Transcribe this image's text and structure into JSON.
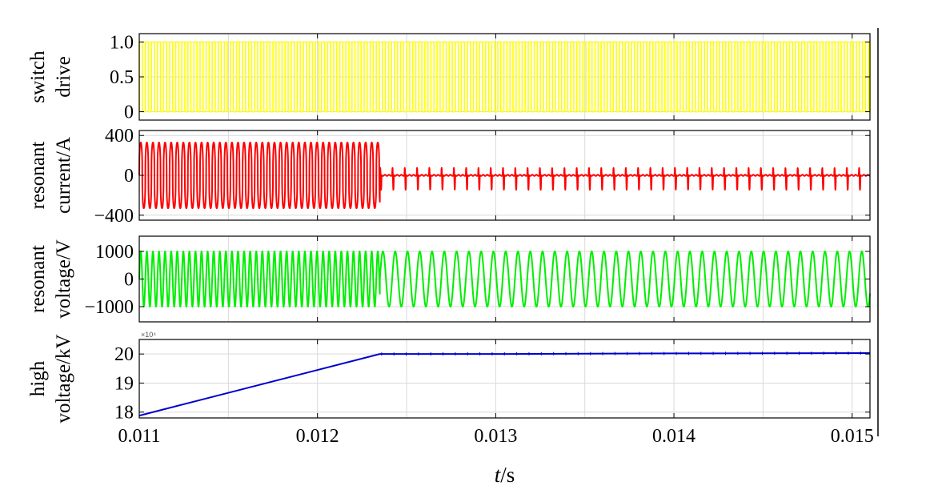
{
  "chart_data": [
    {
      "type": "line",
      "ylabel": [
        "switch",
        "drive"
      ],
      "xlim": [
        0.011,
        0.0151
      ],
      "ylim": [
        -0.12,
        1.12
      ],
      "yticks": [
        0,
        0.5,
        1.0
      ],
      "ytick_labels": [
        "0",
        "0.5",
        "1.0"
      ],
      "grid": true,
      "series": [
        {
          "color": "#ffff00",
          "waveform": "square",
          "low": 0,
          "high": 1,
          "period_s": 3.41e-05,
          "t_start": 0.011,
          "t_end": 0.0151
        }
      ]
    },
    {
      "type": "line",
      "ylabel": [
        "resonant",
        "current/A"
      ],
      "xlim": [
        0.011,
        0.0151
      ],
      "ylim": [
        -450,
        450
      ],
      "yticks": [
        -400,
        0,
        400
      ],
      "ytick_labels": [
        "−400",
        "0",
        "400"
      ],
      "grid": true,
      "series": [
        {
          "color": "#ff0000",
          "segments": [
            {
              "t_start": 0.011,
              "t_end": 0.01235,
              "waveform": "sinusoidal-pulse",
              "amplitude": 330,
              "period_s": 3.41e-05
            },
            {
              "t_start": 0.01235,
              "t_end": 0.0151,
              "waveform": "spike-train",
              "baseline": 0,
              "spike_high": 75,
              "spike_low": -145,
              "period_s": 6.89e-05
            }
          ]
        }
      ]
    },
    {
      "type": "line",
      "ylabel": [
        "resonant",
        "voltage/V"
      ],
      "xlim": [
        0.011,
        0.0151
      ],
      "ylim": [
        -1550,
        1550
      ],
      "yticks": [
        -1000,
        0,
        1000
      ],
      "ytick_labels": [
        "−1000",
        "0",
        "1000"
      ],
      "grid": true,
      "series": [
        {
          "color": "#00ee00",
          "segments": [
            {
              "t_start": 0.011,
              "t_end": 0.01235,
              "waveform": "sine",
              "amplitude": 1000,
              "period_s": 3.41e-05
            },
            {
              "t_start": 0.01235,
              "t_end": 0.0151,
              "waveform": "sine",
              "amplitude": 1000,
              "period_s": 6.89e-05
            }
          ]
        }
      ]
    },
    {
      "type": "line",
      "ylabel": [
        "high",
        "voltage/kV"
      ],
      "xlabel": [
        "t",
        "/s"
      ],
      "xlim": [
        0.011,
        0.0151
      ],
      "ylim": [
        17.8,
        20.5
      ],
      "yticks": [
        18,
        19,
        20
      ],
      "ytick_labels": [
        "18",
        "19",
        "20"
      ],
      "y_multiplier": "×10⁴",
      "xticks": [
        0.011,
        0.012,
        0.013,
        0.014,
        0.015
      ],
      "xtick_labels": [
        "0.011",
        "0.012",
        "0.013",
        "0.014",
        "0.015"
      ],
      "grid": true,
      "series": [
        {
          "color": "#0000cc",
          "x": [
            0.011,
            0.01235,
            0.013,
            0.014,
            0.0151
          ],
          "y": [
            17.88,
            20.0,
            20.0,
            20.02,
            20.03
          ]
        }
      ]
    }
  ]
}
